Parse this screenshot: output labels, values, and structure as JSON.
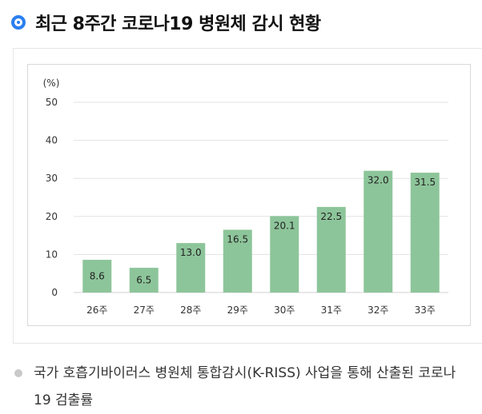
{
  "header": {
    "title": "최근 8주간 코로나19 병원체 감시 현황"
  },
  "chart_data": {
    "type": "bar",
    "ylabel": "(%)",
    "ylim": [
      0,
      50
    ],
    "yticks": [
      0,
      10,
      20,
      30,
      40,
      50
    ],
    "categories": [
      "26주",
      "27주",
      "28주",
      "29주",
      "30주",
      "31주",
      "32주",
      "33주"
    ],
    "values": [
      8.6,
      6.5,
      13.0,
      16.5,
      20.1,
      22.5,
      32.0,
      31.5
    ],
    "value_labels": [
      "8.6",
      "6.5",
      "13.0",
      "16.5",
      "20.1",
      "22.5",
      "32.0",
      "31.5"
    ],
    "grid": true,
    "bar_color": "#8dc59a"
  },
  "footnote": {
    "text": "국가 호흡기바이러스 병원체 통합감시(K-RISS) 사업을 통해 산출된 코로나19 검출률"
  }
}
